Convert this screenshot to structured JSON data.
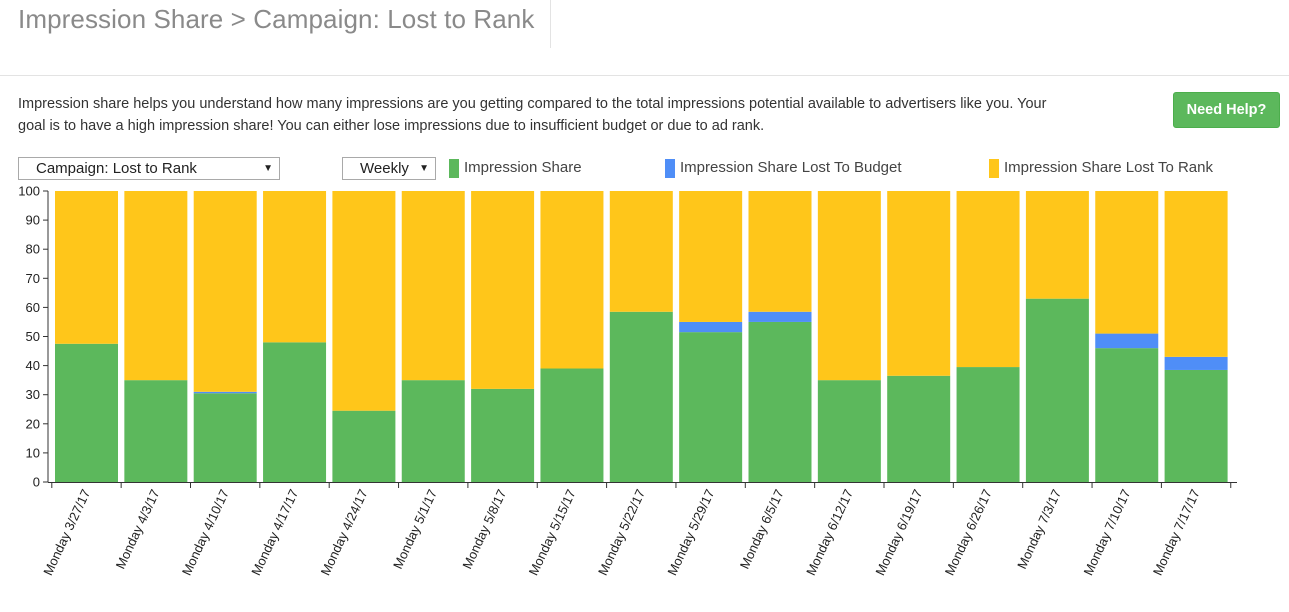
{
  "header": {
    "title": "Impression Share > Campaign: Lost to Rank"
  },
  "description": "Impression share helps you understand how many impressions are you getting compared to the total impressions potential available to advertisers like you. Your goal is to have a high impression share! You can either lose impressions due to insufficient budget or due to ad rank.",
  "help_button": "Need Help?",
  "controls": {
    "campaign_select": "Campaign: Lost to Rank",
    "period_select": "Weekly"
  },
  "colors": {
    "impression_share": "#5cb85c",
    "lost_budget": "#4f8ef7",
    "lost_rank": "#ffc61a"
  },
  "chart_data": {
    "type": "bar",
    "stacked": true,
    "title": "",
    "xlabel": "",
    "ylabel": "",
    "ylim": [
      0,
      100
    ],
    "yticks": [
      0,
      10,
      20,
      30,
      40,
      50,
      60,
      70,
      80,
      90,
      100
    ],
    "legend_position": "top",
    "categories": [
      "Monday 3/27/17",
      "Monday 4/3/17",
      "Monday 4/10/17",
      "Monday 4/17/17",
      "Monday 4/24/17",
      "Monday 5/1/17",
      "Monday 5/8/17",
      "Monday 5/15/17",
      "Monday 5/22/17",
      "Monday 5/29/17",
      "Monday 6/5/17",
      "Monday 6/12/17",
      "Monday 6/19/17",
      "Monday 6/26/17",
      "Monday 7/3/17",
      "Monday 7/10/17",
      "Monday 7/17/17"
    ],
    "series": [
      {
        "name": "Impression Share",
        "color": "#5cb85c",
        "values": [
          47.5,
          35,
          30.5,
          48,
          24.5,
          35,
          32,
          39,
          58.5,
          51.5,
          55,
          35,
          36.5,
          39.5,
          63,
          46,
          38.5
        ]
      },
      {
        "name": "Impression Share Lost To Budget",
        "color": "#4f8ef7",
        "values": [
          0,
          0,
          0.5,
          0,
          0,
          0,
          0,
          0,
          0,
          3.5,
          3.5,
          0,
          0,
          0,
          0,
          5,
          4.5
        ]
      },
      {
        "name": "Impression Share Lost To Rank",
        "color": "#ffc61a",
        "values": [
          52.5,
          65,
          69,
          52,
          75.5,
          65,
          68,
          61,
          41.5,
          45,
          41.5,
          65,
          63.5,
          60.5,
          37,
          49,
          57
        ]
      }
    ]
  }
}
